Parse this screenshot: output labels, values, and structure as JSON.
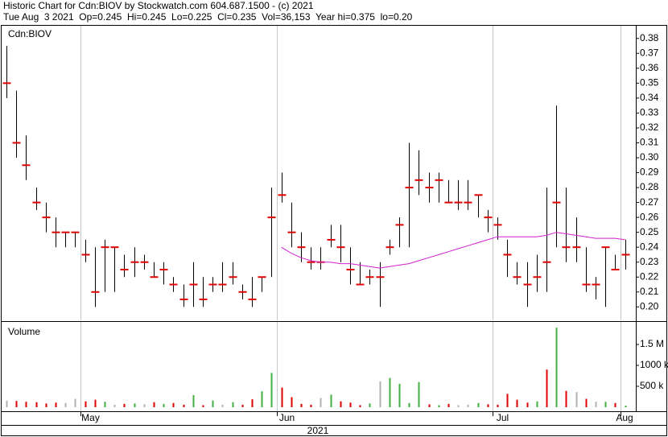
{
  "chart_data": {
    "type": "stock",
    "title": "Historic Chart for Cdn:BIOV by Stockwatch.com 604.687.1500 - (c) 2021",
    "subtitle": "Tue Aug  3 2021  Op=0.245  Hi=0.245  Lo=0.225  Cl=0.235  Vol=36,153  Year hi=0.375  lo=0.20",
    "symbol_label": "Cdn:BIOV",
    "volume_label": "Volume",
    "x_label": "2021",
    "categories": [
      null,
      null,
      null,
      null,
      null,
      null,
      null,
      null,
      "May",
      null,
      null,
      null,
      null,
      null,
      null,
      null,
      null,
      null,
      null,
      null,
      null,
      null,
      null,
      null,
      null,
      null,
      null,
      null,
      "Jun",
      null,
      null,
      null,
      null,
      null,
      null,
      null,
      null,
      null,
      null,
      null,
      null,
      null,
      null,
      null,
      null,
      null,
      null,
      null,
      null,
      null,
      "Jul",
      null,
      null,
      null,
      null,
      null,
      null,
      null,
      null,
      null,
      null,
      null,
      null,
      "Aug"
    ],
    "high": [
      0.375,
      0.345,
      0.315,
      0.28,
      0.27,
      0.26,
      0.25,
      0.25,
      0.245,
      0.24,
      0.245,
      0.24,
      0.235,
      0.24,
      0.235,
      0.23,
      0.23,
      0.22,
      0.215,
      0.23,
      0.22,
      0.22,
      0.23,
      0.23,
      0.215,
      0.22,
      0.22,
      0.28,
      0.29,
      0.27,
      0.25,
      0.24,
      0.24,
      0.255,
      0.255,
      0.24,
      0.23,
      0.225,
      0.23,
      0.245,
      0.26,
      0.31,
      0.305,
      0.29,
      0.29,
      0.285,
      0.285,
      0.285,
      0.275,
      0.265,
      0.26,
      0.245,
      0.23,
      0.23,
      0.235,
      0.28,
      0.335,
      0.28,
      0.26,
      0.24,
      0.22,
      0.24,
      0.235,
      0.245
    ],
    "low": [
      0.34,
      0.3,
      0.285,
      0.265,
      0.25,
      0.24,
      0.24,
      0.24,
      0.23,
      0.2,
      0.21,
      0.21,
      0.22,
      0.22,
      0.225,
      0.22,
      0.215,
      0.21,
      0.2,
      0.2,
      0.2,
      0.21,
      0.21,
      0.215,
      0.205,
      0.2,
      0.21,
      0.22,
      0.27,
      0.24,
      0.23,
      0.225,
      0.225,
      0.24,
      0.23,
      0.215,
      0.215,
      0.215,
      0.2,
      0.235,
      0.24,
      0.24,
      0.275,
      0.27,
      0.27,
      0.27,
      0.265,
      0.265,
      0.26,
      0.25,
      0.245,
      0.22,
      0.215,
      0.2,
      0.21,
      0.21,
      0.24,
      0.23,
      0.23,
      0.21,
      0.205,
      0.2,
      0.225,
      0.225
    ],
    "close": [
      0.35,
      0.31,
      0.295,
      0.27,
      0.26,
      0.25,
      0.25,
      0.25,
      0.235,
      0.21,
      0.24,
      0.24,
      0.225,
      0.23,
      0.23,
      0.22,
      0.225,
      0.215,
      0.205,
      0.215,
      0.205,
      0.215,
      0.215,
      0.22,
      0.21,
      0.205,
      0.22,
      0.26,
      0.275,
      0.25,
      0.24,
      0.23,
      0.23,
      0.245,
      0.24,
      0.225,
      0.215,
      0.22,
      0.22,
      0.24,
      0.255,
      0.28,
      0.285,
      0.28,
      0.285,
      0.27,
      0.27,
      0.27,
      0.275,
      0.26,
      0.255,
      0.235,
      0.22,
      0.215,
      0.22,
      0.23,
      0.27,
      0.24,
      0.24,
      0.215,
      0.215,
      0.24,
      0.225,
      0.235
    ],
    "moving_average": [
      null,
      null,
      null,
      null,
      null,
      null,
      null,
      null,
      null,
      null,
      null,
      null,
      null,
      null,
      null,
      null,
      null,
      null,
      null,
      null,
      null,
      null,
      null,
      null,
      null,
      null,
      null,
      null,
      0.24,
      0.236,
      0.233,
      0.231,
      0.23,
      0.23,
      0.229,
      0.229,
      0.228,
      0.227,
      0.226,
      0.227,
      0.228,
      0.229,
      0.231,
      0.233,
      0.235,
      0.237,
      0.239,
      0.241,
      0.243,
      0.245,
      0.247,
      0.247,
      0.247,
      0.247,
      0.247,
      0.248,
      0.25,
      0.249,
      0.248,
      0.247,
      0.246,
      0.246,
      0.246,
      0.245
    ],
    "volume": [
      160000,
      150000,
      130000,
      120000,
      90000,
      110000,
      100000,
      200000,
      140000,
      180000,
      130000,
      60000,
      80000,
      90000,
      70000,
      120000,
      80000,
      100000,
      60000,
      290000,
      50000,
      160000,
      60000,
      120000,
      60000,
      190000,
      380000,
      820000,
      470000,
      240000,
      80000,
      60000,
      220000,
      300000,
      140000,
      110000,
      50000,
      90000,
      620000,
      700000,
      560000,
      100000,
      600000,
      70000,
      50000,
      80000,
      50000,
      60000,
      100000,
      70000,
      60000,
      320000,
      180000,
      110000,
      140000,
      900000,
      1900000,
      390000,
      360000,
      200000,
      130000,
      130000,
      100000,
      40000
    ],
    "volume_colors": [
      "#b0b0b0",
      "#e00000",
      "#e00000",
      "#e00000",
      "#e00000",
      "#e00000",
      "#b0b0b0",
      "#b0b0b0",
      "#e00000",
      "#e00000",
      "#40b040",
      "#b0b0b0",
      "#e00000",
      "#40b040",
      "#b0b0b0",
      "#e00000",
      "#40b040",
      "#e00000",
      "#e00000",
      "#40b040",
      "#e00000",
      "#40b040",
      "#b0b0b0",
      "#40b040",
      "#e00000",
      "#e00000",
      "#40b040",
      "#40b040",
      "#e00000",
      "#e00000",
      "#e00000",
      "#e00000",
      "#b0b0b0",
      "#40b040",
      "#e00000",
      "#e00000",
      "#e00000",
      "#40b040",
      "#b0b0b0",
      "#40b040",
      "#40b040",
      "#40b040",
      "#40b040",
      "#e00000",
      "#40b040",
      "#e00000",
      "#b0b0b0",
      "#b0b0b0",
      "#40b040",
      "#e00000",
      "#e00000",
      "#e00000",
      "#e00000",
      "#e00000",
      "#40b040",
      "#e00000",
      "#40b040",
      "#e00000",
      "#b0b0b0",
      "#e00000",
      "#b0b0b0",
      "#40b040",
      "#e00000",
      "#40b040"
    ],
    "bar_color": "#000000",
    "close_color": "#e00000",
    "ma_color": "#d020d0",
    "ylim": [
      0.191,
      0.3885
    ],
    "yticks": [
      {
        "value": 0.2,
        "label": "0.20"
      },
      0.21,
      0.22,
      0.23,
      0.24,
      0.25,
      0.26,
      0.27,
      0.28,
      0.29,
      {
        "value": 0.3,
        "label": "0.30"
      },
      0.31,
      0.32,
      0.33,
      0.34,
      0.35,
      0.36,
      0.37,
      0.38
    ],
    "volume_ylim": [
      0,
      2000000
    ],
    "volume_ticks": [
      {
        "value": 500000,
        "label": "500 k"
      },
      {
        "value": 1000000,
        "label": "1000 k"
      },
      {
        "value": 1500000,
        "label": "1.5 M"
      }
    ]
  }
}
